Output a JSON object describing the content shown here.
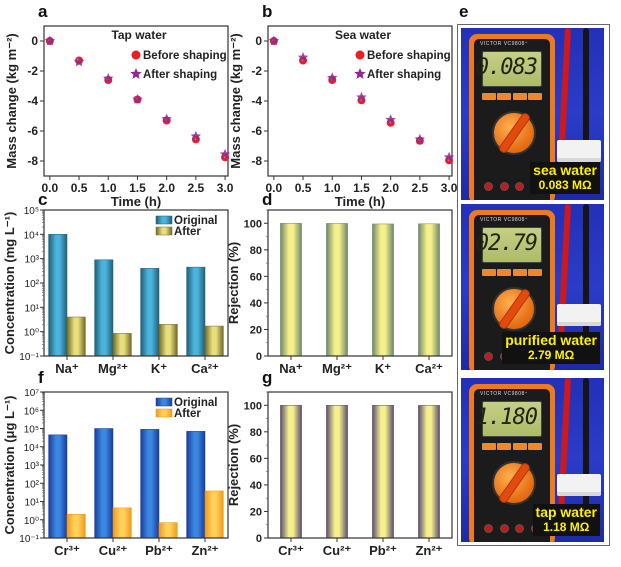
{
  "panel_letters": {
    "a": "a",
    "b": "b",
    "c": "c",
    "d": "d",
    "e": "e",
    "f": "f",
    "g": "g"
  },
  "chart_data": [
    {
      "id": "a",
      "type": "scatter",
      "title": "Tap water",
      "xlabel": "Time (h)",
      "ylabel": "Mass change (kg m⁻²)",
      "xlim": [
        -0.1,
        3.05
      ],
      "ylim": [
        -9,
        1
      ],
      "xticks": [
        0.0,
        0.5,
        1.0,
        1.5,
        2.0,
        2.5,
        3.0
      ],
      "xtick_labels": [
        "0.0",
        "0.5",
        "1.0",
        "1.5",
        "2.0",
        "2.5",
        "3.0"
      ],
      "yticks": [
        0,
        -2,
        -4,
        -6,
        -8
      ],
      "ytick_labels": [
        "0",
        "-2",
        "-4",
        "-6",
        "-8"
      ],
      "legend_position": "top-right",
      "x": [
        0.0,
        0.5,
        1.0,
        1.5,
        2.0,
        2.5,
        3.0
      ],
      "series": [
        {
          "name": "Before shaping",
          "marker": "circle",
          "color": "#ee1c25",
          "values": [
            0,
            -1.3,
            -2.6,
            -3.9,
            -5.3,
            -6.55,
            -7.75
          ]
        },
        {
          "name": "After shaping",
          "marker": "star",
          "color": "#8e2a92",
          "values": [
            0,
            -1.4,
            -2.5,
            -3.9,
            -5.2,
            -6.35,
            -7.55
          ]
        }
      ]
    },
    {
      "id": "b",
      "type": "scatter",
      "title": "Sea water",
      "xlabel": "Time (h)",
      "ylabel": "Mass change (kg m⁻²)",
      "xlim": [
        -0.1,
        3.05
      ],
      "ylim": [
        -9,
        1
      ],
      "xticks": [
        0.0,
        0.5,
        1.0,
        1.5,
        2.0,
        2.5,
        3.0
      ],
      "xtick_labels": [
        "0.0",
        "0.5",
        "1.0",
        "1.5",
        "2.0",
        "2.5",
        "3.0"
      ],
      "yticks": [
        0,
        -2,
        -4,
        -6,
        -8
      ],
      "ytick_labels": [
        "0",
        "-2",
        "-4",
        "-6",
        "-8"
      ],
      "legend_position": "top-right",
      "x": [
        0.0,
        0.5,
        1.0,
        1.5,
        2.0,
        2.5,
        3.0
      ],
      "series": [
        {
          "name": "Before shaping",
          "marker": "circle",
          "color": "#ee1c25",
          "values": [
            0,
            -1.3,
            -2.6,
            -3.95,
            -5.45,
            -6.65,
            -7.95
          ]
        },
        {
          "name": "After shaping",
          "marker": "star",
          "color": "#8e2a92",
          "values": [
            0,
            -1.1,
            -2.45,
            -3.75,
            -5.25,
            -6.55,
            -7.75
          ]
        }
      ]
    },
    {
      "id": "c",
      "type": "bar",
      "yscale": "log",
      "xlabel": "",
      "ylabel": "Concentration (mg L⁻¹)",
      "ylim": [
        0.1,
        100000
      ],
      "ytick_labels": [
        "10⁻¹",
        "10⁰",
        "10¹",
        "10²",
        "10³",
        "10⁴",
        "10⁵"
      ],
      "categories": [
        "Na⁺",
        "Mg²⁺",
        "K⁺",
        "Ca²⁺"
      ],
      "legend_position": "top-right",
      "series": [
        {
          "name": "Original",
          "color": "#4bb4dc",
          "edge": "#1f5f78",
          "values": [
            10000,
            900,
            400,
            450
          ]
        },
        {
          "name": "After",
          "color": "#e8de7c",
          "edge": "#6f6a2a",
          "values": [
            4,
            0.85,
            2,
            1.7
          ]
        }
      ]
    },
    {
      "id": "d",
      "type": "bar",
      "xlabel": "",
      "ylabel": "Rejection (%)",
      "ylim": [
        0,
        110
      ],
      "yticks": [
        0,
        20,
        40,
        60,
        80,
        100
      ],
      "ytick_labels": [
        "0",
        "20",
        "40",
        "60",
        "80",
        "100"
      ],
      "categories": [
        "Na⁺",
        "Mg²⁺",
        "K⁺",
        "Ca²⁺"
      ],
      "series": [
        {
          "name": "Rejection",
          "color": "#f6f08c",
          "edge": "#6f8a6a",
          "values": [
            99.96,
            99.9,
            99.5,
            99.6
          ]
        }
      ]
    },
    {
      "id": "f",
      "type": "bar",
      "yscale": "log",
      "xlabel": "",
      "ylabel": "Concentration (μg L⁻¹)",
      "ylim": [
        0.1,
        10000000
      ],
      "ytick_labels": [
        "10⁻¹",
        "10⁰",
        "10¹",
        "10²",
        "10³",
        "10⁴",
        "10⁵",
        "10⁶",
        "10⁷"
      ],
      "categories": [
        "Cr³⁺",
        "Cu²⁺",
        "Pb²⁺",
        "Zn²⁺"
      ],
      "legend_position": "top-right",
      "series": [
        {
          "name": "Original",
          "color": "#3a86e0",
          "edge": "#1a3c9a",
          "values": [
            45000,
            100000,
            90000,
            70000
          ]
        },
        {
          "name": "After",
          "color": "#ffd05a",
          "edge": "#f09a1a",
          "values": [
            2,
            4.5,
            0.7,
            38
          ]
        }
      ]
    },
    {
      "id": "g",
      "type": "bar",
      "xlabel": "",
      "ylabel": "Rejection (%)",
      "ylim": [
        0,
        110
      ],
      "yticks": [
        0,
        20,
        40,
        60,
        80,
        100
      ],
      "ytick_labels": [
        "0",
        "20",
        "40",
        "60",
        "80",
        "100"
      ],
      "categories": [
        "Cr³⁺",
        "Cu²⁺",
        "Pb²⁺",
        "Zn²⁺"
      ],
      "series": [
        {
          "name": "Rejection",
          "color": "#f6f08c",
          "edge": "#5a5070",
          "values": [
            99.99,
            99.99,
            99.99,
            99.95
          ]
        }
      ]
    }
  ],
  "photos": [
    {
      "display": "0.083",
      "label_line1": "sea water",
      "label_line2": "0.083 MΩ",
      "brand": "VICTOR VC9808⁺"
    },
    {
      "display": "02.79",
      "label_line1": "purified water",
      "label_line2": "2.79 MΩ",
      "brand": "VICTOR VC9808⁺"
    },
    {
      "display": "1.180",
      "label_line1": "tap water",
      "label_line2": "1.18 MΩ",
      "brand": "VICTOR VC9808⁺"
    }
  ]
}
